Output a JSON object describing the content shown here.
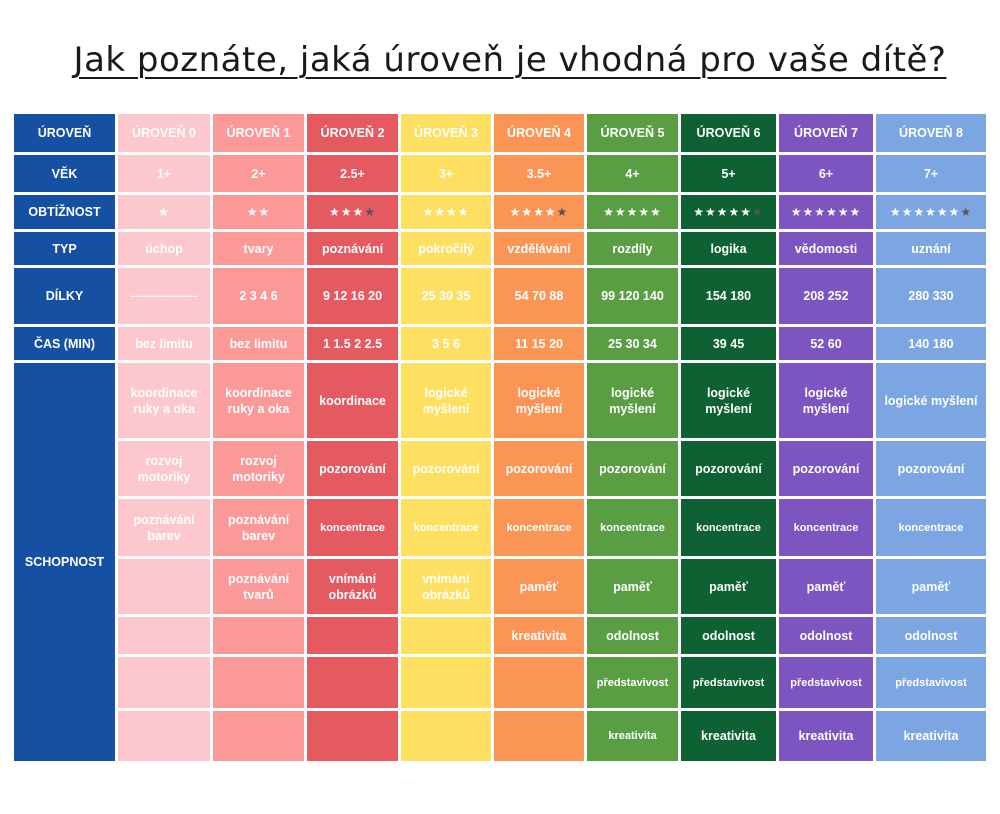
{
  "title": "Jak poznáte, jaká úroveň je vhodná pro vaše dítě?",
  "colors": {
    "header": "#1550a3",
    "levels": [
      "#fdc8cd",
      "#fb9898",
      "#e45a60",
      "#fde061",
      "#fb9555",
      "#5a9e44",
      "#0e6132",
      "#7c55c0",
      "#7ba6e2"
    ]
  },
  "row_headers": {
    "level": "ÚROVEŇ",
    "age": "VĚK",
    "difficulty": "OBTÍŽNOST",
    "type": "TYP",
    "pieces": "DÍLKY",
    "time": "ČAS (MIN)",
    "skill": "SCHOPNOST"
  },
  "levels": [
    {
      "name": "ÚROVEŇ 0",
      "age": "1+",
      "stars": "★",
      "half_star": "",
      "type": "úchop",
      "pieces": "-------------------",
      "time": "bez limitu",
      "skills": [
        "koordinace ruky a oka",
        "rozvoj motoriky",
        "poznávání barev",
        "",
        "",
        "",
        ""
      ]
    },
    {
      "name": "ÚROVEŇ 1",
      "age": "2+",
      "stars": "★★",
      "half_star": "",
      "type": "tvary",
      "pieces": "2 3 4  6",
      "time": "bez limitu",
      "skills": [
        "koordinace ruky a oka",
        "rozvoj motoriky",
        "poznávání barev",
        "poznávání tvarů",
        "",
        "",
        ""
      ]
    },
    {
      "name": "ÚROVEŇ 2",
      "age": "2.5+",
      "stars": "★★★",
      "half_star": "★",
      "type": "poznávání",
      "pieces": "9 12 16 20",
      "time": "1 1.5 2 2.5",
      "skills": [
        "koordinace",
        "pozorování",
        "koncentrace",
        "vnímání obrázků",
        "",
        "",
        ""
      ]
    },
    {
      "name": "ÚROVEŇ 3",
      "age": "3+",
      "stars": "★★★★",
      "half_star": "",
      "type": "pokročilý",
      "pieces": "25 30 35",
      "time": "3 5 6",
      "skills": [
        "logické myšlení",
        "pozorování",
        "koncentrace",
        "vnímání obrázků",
        "",
        "",
        ""
      ]
    },
    {
      "name": "ÚROVEŇ 4",
      "age": "3.5+",
      "stars": "★★★★",
      "half_star": "★",
      "type": "vzdělávání",
      "pieces": "54 70 88",
      "time": "11 15 20",
      "skills": [
        "logické myšlení",
        "pozorování",
        "koncentrace",
        "paměť",
        "kreativita",
        "",
        ""
      ]
    },
    {
      "name": "ÚROVEŇ 5",
      "age": "4+",
      "stars": "★★★★★",
      "half_star": "",
      "type": "rozdíly",
      "pieces": "99 120 140",
      "time": "25 30 34",
      "skills": [
        "logické myšlení",
        "pozorování",
        "koncentrace",
        "paměť",
        "odolnost",
        "představivost",
        "kreativita"
      ]
    },
    {
      "name": "ÚROVEŇ 6",
      "age": "5+",
      "stars": "★★★★★",
      "half_star": "★",
      "type": "logika",
      "pieces": "154  180",
      "time": "39 45",
      "skills": [
        "logické myšlení",
        "pozorování",
        "koncentrace",
        "paměť",
        "odolnost",
        "představivost",
        "kreativita"
      ]
    },
    {
      "name": "ÚROVEŇ 7",
      "age": "6+",
      "stars": "★★★★★★",
      "half_star": "",
      "type": "vědomosti",
      "pieces": "208  252",
      "time": "52 60",
      "skills": [
        "logické myšlení",
        "pozorování",
        "koncentrace",
        "paměť",
        "odolnost",
        "představivost",
        "kreativita"
      ]
    },
    {
      "name": "ÚROVEŇ 8",
      "age": "7+",
      "stars": "★★★★★★",
      "half_star": "★",
      "type": "uznání",
      "pieces": "280 330",
      "time": "140 180",
      "skills": [
        "logické myšlení",
        "pozorování",
        "koncentrace",
        "paměť",
        "odolnost",
        "představivost",
        "kreativita"
      ]
    }
  ]
}
